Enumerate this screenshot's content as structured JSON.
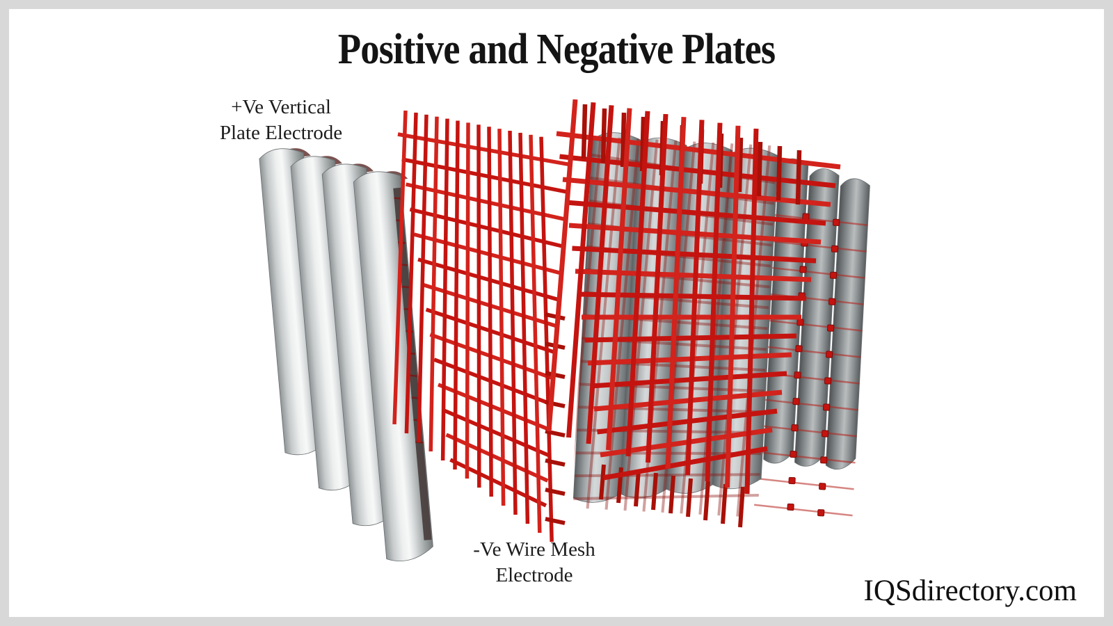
{
  "page": {
    "title": "Positive and Negative Plates",
    "watermark": "IQSdirectory.com",
    "background": "#ffffff",
    "frame_color": "#d8d8d8",
    "text_color": "#141414"
  },
  "labels": {
    "positive_plate": {
      "line1": "+Ve Vertical",
      "line2": "Plate Electrode"
    },
    "negative_mesh": {
      "line1": "-Ve Wire Mesh",
      "line2": "Electrode"
    }
  },
  "figure": {
    "wire_color": "#c41410",
    "wire_color_bright": "#d2231c",
    "wire_color_dark": "#8e0d08",
    "wire_color_dim": "#a81008",
    "plate_highlight": "#f7f8f8",
    "plate_mid": "#c6cacb",
    "plate_shadow": "#777b7c",
    "plate_dark_side": "#5f6466",
    "inner_face_maroon": "#6b3f3c",
    "left_plates_count": 4,
    "middle_mesh": {
      "vertical_wires": 14,
      "horizontal_wires": 14
    },
    "right_mesh": {
      "vertical_wires": 11,
      "horizontal_wires": 16,
      "extra_tip_rows": 12
    },
    "right_plates_count": 4,
    "side_plates_count": 3,
    "side_dot_rows": 12,
    "side_dot_columns": 2
  }
}
